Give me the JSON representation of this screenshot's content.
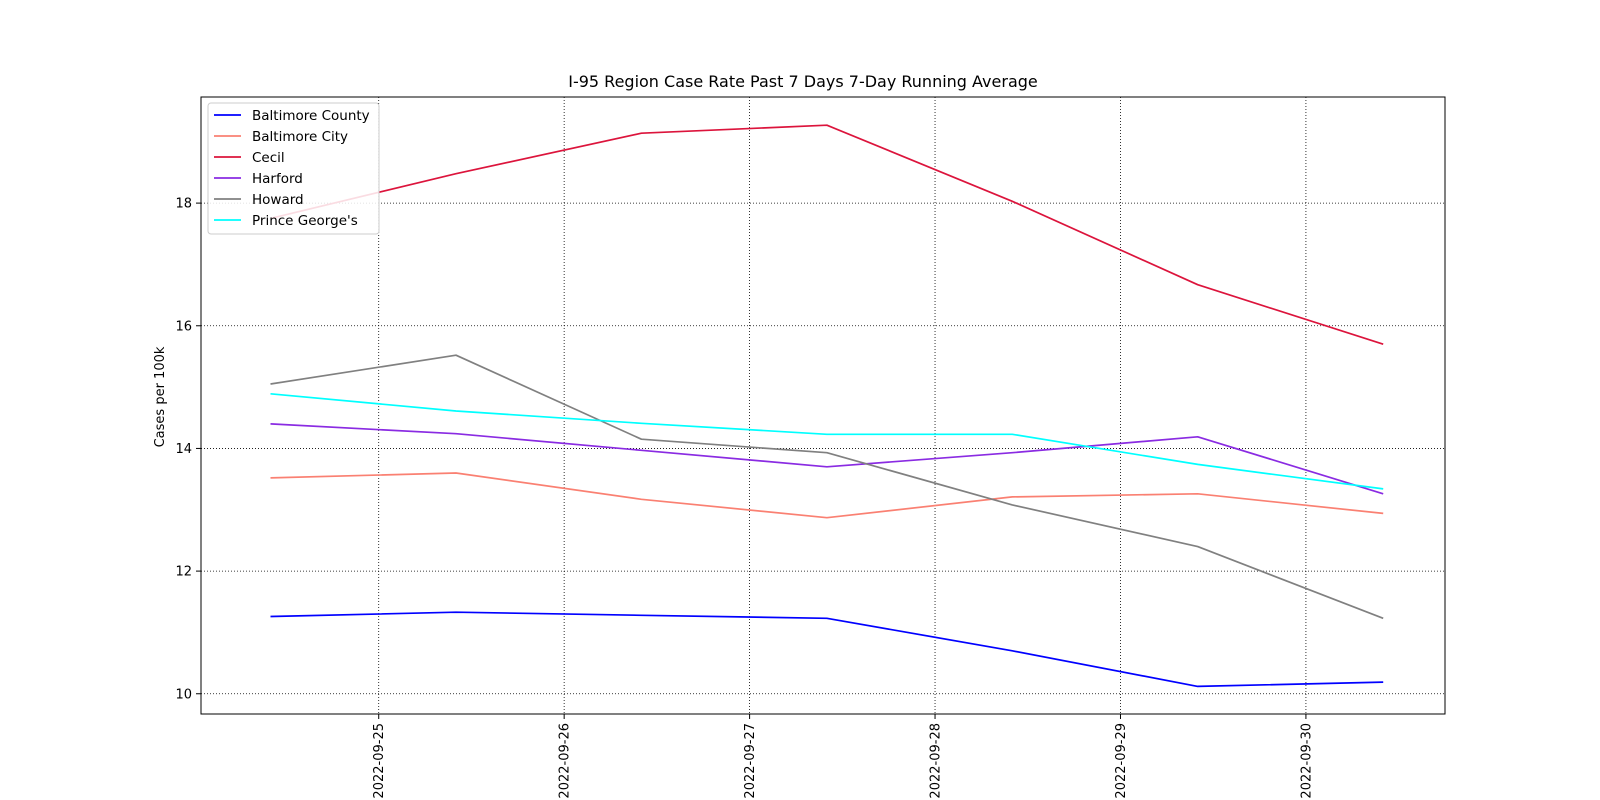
{
  "chart_data": {
    "type": "line",
    "title": "I-95 Region Case Rate  Past 7 Days 7-Day Running Average",
    "xlabel": "",
    "ylabel": "Cases per 100k",
    "x": [
      "2022-09-24 10:00",
      "2022-09-25 10:00",
      "2022-09-26 10:00",
      "2022-09-27 10:00",
      "2022-09-28 10:00",
      "2022-09-29 10:00",
      "2022-09-30 10:00"
    ],
    "x_ticks": [
      "2022-09-25",
      "2022-09-26",
      "2022-09-27",
      "2022-09-28",
      "2022-09-29",
      "2022-09-30"
    ],
    "xlim": [
      "2022-09-24 01:00",
      "2022-09-30 18:00"
    ],
    "y_ticks": [
      10,
      12,
      14,
      16,
      18
    ],
    "ylim": [
      9.67,
      19.73
    ],
    "grid": true,
    "grid_style": "dotted",
    "legend_position": "upper-left",
    "series": [
      {
        "name": "Baltimore County",
        "color": "#0000ff",
        "values": [
          11.26,
          11.33,
          11.28,
          11.23,
          10.7,
          10.12,
          10.19
        ]
      },
      {
        "name": "Baltimore City",
        "color": "#fa8072",
        "values": [
          13.52,
          13.6,
          13.17,
          12.87,
          13.21,
          13.26,
          12.94
        ]
      },
      {
        "name": "Cecil",
        "color": "#dc143c",
        "values": [
          17.75,
          18.48,
          19.14,
          19.27,
          18.03,
          16.67,
          15.7
        ]
      },
      {
        "name": "Harford",
        "color": "#8a2be2",
        "values": [
          14.4,
          14.24,
          13.97,
          13.7,
          13.93,
          14.19,
          13.26
        ]
      },
      {
        "name": "Howard",
        "color": "#808080",
        "values": [
          15.05,
          15.52,
          14.15,
          13.93,
          13.08,
          12.4,
          11.23
        ]
      },
      {
        "name": "Prince George's",
        "color": "#00ffff",
        "values": [
          14.89,
          14.61,
          14.41,
          14.23,
          14.23,
          13.74,
          13.34
        ]
      }
    ]
  }
}
